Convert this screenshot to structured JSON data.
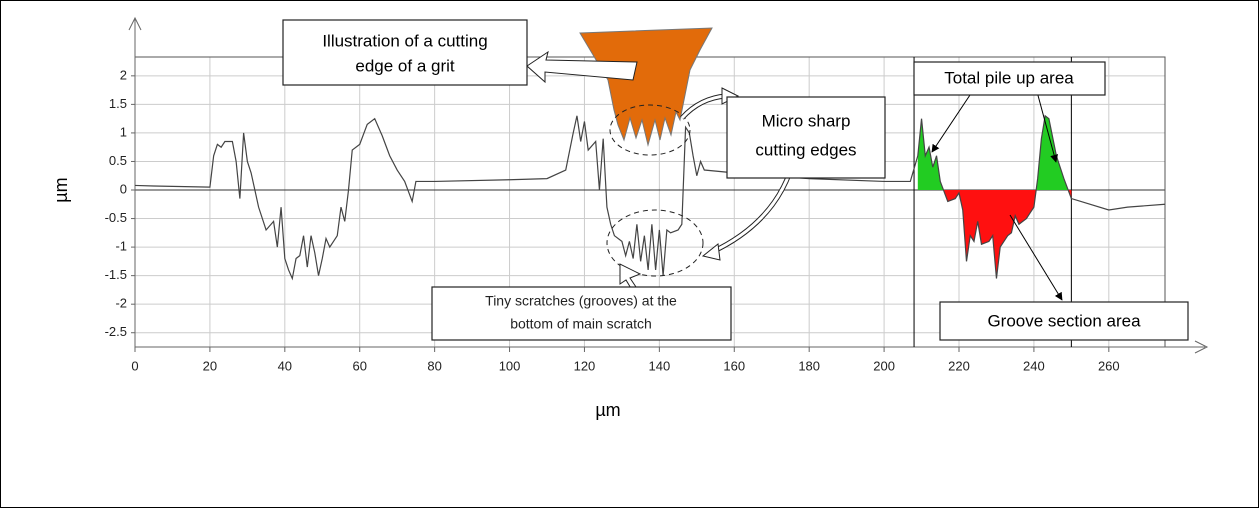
{
  "chart_data": {
    "type": "line",
    "x_label": "µm",
    "y_label": "µm",
    "xlim": [
      0,
      275
    ],
    "ylim": [
      -2.75,
      2.33
    ],
    "xticks": [
      0,
      20,
      40,
      60,
      80,
      100,
      120,
      140,
      160,
      180,
      200,
      220,
      240,
      260
    ],
    "yticks": [
      -2.5,
      -2,
      -1.5,
      -1,
      -0.5,
      0,
      0.5,
      1,
      1.5,
      2
    ],
    "grid": true,
    "color": "#444444",
    "highlight_range": [
      208,
      250
    ],
    "fill_positive": "#22cc22",
    "fill_negative": "#ff1010",
    "x": [
      0,
      5,
      20,
      21,
      22,
      23,
      24,
      26,
      27,
      28,
      29,
      30,
      31,
      33,
      35,
      37,
      38,
      39,
      40,
      41,
      42,
      43,
      44,
      45,
      46,
      47,
      48,
      49,
      50,
      51,
      52,
      54,
      55,
      56,
      57,
      58,
      60,
      62,
      64,
      66,
      68,
      70,
      72,
      74,
      75,
      80,
      100,
      110,
      115,
      117,
      118,
      119,
      120,
      121,
      123,
      124,
      125,
      126,
      127,
      128,
      130,
      131,
      132,
      133,
      134,
      135,
      136,
      137,
      138,
      139,
      140,
      141,
      142,
      143,
      145,
      146,
      147,
      148,
      149,
      150,
      151,
      152,
      160,
      180,
      200,
      207,
      209,
      210,
      211,
      212,
      213,
      214,
      215,
      217,
      219,
      220,
      221,
      222,
      223,
      224,
      225,
      226,
      228,
      229,
      230,
      231,
      233,
      234,
      235,
      236,
      238,
      239,
      240,
      241,
      242,
      243,
      244,
      246,
      248,
      250,
      260,
      265,
      275
    ],
    "values": [
      0.08,
      0.07,
      0.05,
      0.6,
      0.8,
      0.75,
      0.85,
      0.85,
      0.5,
      -0.15,
      1.0,
      0.5,
      0.3,
      -0.3,
      -0.7,
      -0.55,
      -1.0,
      -0.3,
      -1.2,
      -1.4,
      -1.55,
      -1.2,
      -1.15,
      -0.8,
      -1.35,
      -0.8,
      -1.1,
      -1.5,
      -1.2,
      -0.85,
      -1.0,
      -0.8,
      -0.3,
      -0.55,
      0.0,
      0.7,
      0.8,
      1.15,
      1.25,
      0.95,
      0.6,
      0.35,
      0.15,
      -0.2,
      0.15,
      0.15,
      0.18,
      0.2,
      0.35,
      1.0,
      1.3,
      0.85,
      1.2,
      0.7,
      0.85,
      0.0,
      0.9,
      -0.3,
      -0.6,
      -0.8,
      -0.9,
      -1.15,
      -0.9,
      -1.2,
      -0.6,
      -1.25,
      -0.8,
      -1.4,
      -0.6,
      -1.4,
      -0.7,
      -1.5,
      -0.7,
      -0.75,
      -0.7,
      -0.6,
      1.1,
      1.0,
      0.6,
      0.25,
      0.5,
      0.35,
      0.3,
      0.2,
      0.15,
      0.15,
      0.6,
      1.25,
      0.6,
      0.75,
      0.4,
      0.6,
      0.15,
      -0.2,
      -0.15,
      -0.05,
      -0.35,
      -1.25,
      -0.8,
      -0.9,
      -0.55,
      -0.95,
      -0.9,
      -0.8,
      -1.55,
      -1.0,
      -0.8,
      -0.75,
      -0.45,
      -0.6,
      -0.5,
      -0.4,
      -0.3,
      0.2,
      0.9,
      1.3,
      1.25,
      0.6,
      0.2,
      -0.15,
      -0.35,
      -0.3,
      -0.25
    ],
    "annotations": {
      "cutting_edge": [
        "Illustration of a cutting",
        "edge of a grit"
      ],
      "micro_edges": [
        "Micro sharp",
        "cutting edges"
      ],
      "pile_up": "Total pile up area",
      "groove": "Groove section area",
      "tiny_scratches": [
        "Tiny scratches (grooves) at the",
        "bottom of main scratch"
      ]
    }
  }
}
